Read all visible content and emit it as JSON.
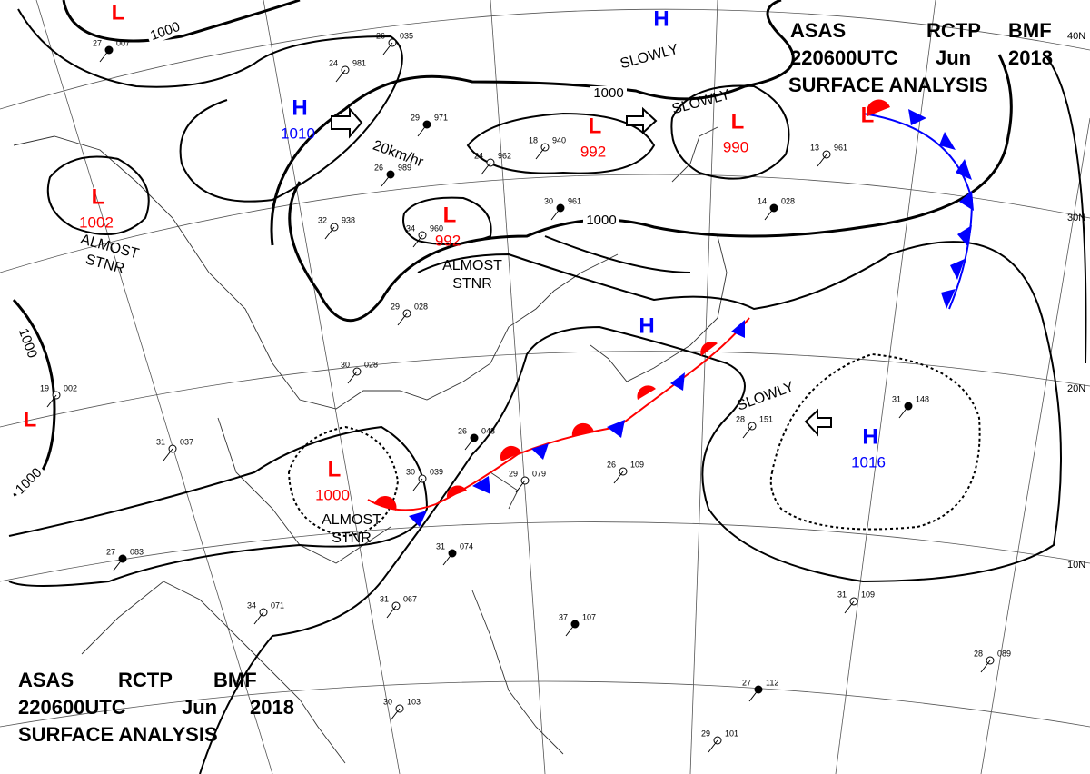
{
  "header": {
    "line1": [
      "ASAS",
      "RCTP",
      "BMF"
    ],
    "line2": [
      "220600UTC",
      "Jun",
      "2018"
    ],
    "line3": "SURFACE ANALYSIS"
  },
  "systems": [
    {
      "type": "L"
    },
    {
      "type": "H"
    },
    {
      "type": "H",
      "pressure": 1010
    },
    {
      "type": "L",
      "pressure": 1002
    },
    {
      "type": "L",
      "pressure": 992
    },
    {
      "type": "L",
      "pressure": 992
    },
    {
      "type": "L",
      "pressure": 990
    },
    {
      "type": "L"
    },
    {
      "type": "H"
    },
    {
      "type": "L"
    },
    {
      "type": "L",
      "pressure": 1000
    },
    {
      "type": "H",
      "pressure": 1016
    }
  ],
  "isobar_labels": [
    1000,
    1000,
    1000,
    1000,
    1000
  ],
  "annotations": [
    "ALMOST\nSTNR",
    "ALMOST\nSTNR",
    "ALMOST\nSTNR",
    "SLOWLY",
    "SLOWLY",
    "SLOWLY",
    "20km/hr"
  ],
  "latitudes": [
    "40N",
    "30N",
    "20N",
    "10N"
  ],
  "stations": [
    {
      "t": 27,
      "p": "007"
    },
    {
      "t": 26,
      "p": "035"
    },
    {
      "t": 24,
      "p": "981"
    },
    {
      "t": 29,
      "p": "971"
    },
    {
      "t": 18,
      "p": "940"
    },
    {
      "t": 24,
      "p": "962"
    },
    {
      "t": 26,
      "p": "989"
    },
    {
      "t": 32,
      "p": "938"
    },
    {
      "t": 34,
      "p": "960"
    },
    {
      "t": 30,
      "p": "961"
    },
    {
      "t": 29,
      "p": "028"
    },
    {
      "t": 30,
      "p": "028"
    },
    {
      "t": 26,
      "p": "048"
    },
    {
      "t": 30,
      "p": "039"
    },
    {
      "t": 29,
      "p": "079"
    },
    {
      "t": 31,
      "p": "074"
    },
    {
      "t": 31,
      "p": "067"
    },
    {
      "t": 34,
      "p": "071"
    },
    {
      "t": 27,
      "p": "083"
    },
    {
      "t": 31,
      "p": "037"
    },
    {
      "t": 28,
      "p": "151"
    },
    {
      "t": 31,
      "p": "148"
    },
    {
      "t": 31,
      "p": "109"
    },
    {
      "t": 28,
      "p": "089"
    },
    {
      "t": 27,
      "p": "112"
    },
    {
      "t": 29,
      "p": "101"
    },
    {
      "t": 30,
      "p": "103"
    },
    {
      "t": 37,
      "p": "107"
    },
    {
      "t": 26,
      "p": "109"
    },
    {
      "t": 13,
      "p": "961"
    },
    {
      "t": 14,
      "p": "028"
    },
    {
      "t": 19,
      "p": "002"
    }
  ]
}
